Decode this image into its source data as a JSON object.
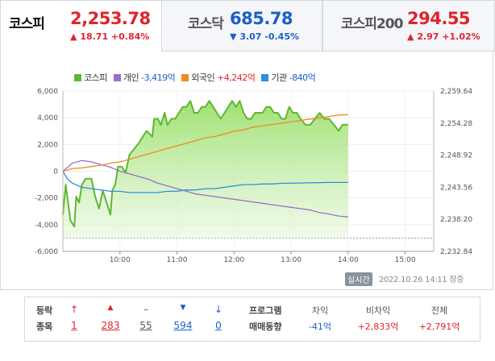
{
  "tabs": [
    {
      "name": "코스피",
      "value": "2,253.78",
      "change_icon": "▲",
      "change_text": "18.71 +0.84%",
      "direction": "up"
    },
    {
      "name": "코스닥",
      "value": "685.78",
      "change_icon": "▼",
      "change_text": "3.07 -0.45%",
      "direction": "down"
    },
    {
      "name": "코스피200",
      "value": "294.55",
      "change_icon": "▲",
      "change_text": "2.97 +1.02%",
      "direction": "up"
    }
  ],
  "legend": [
    {
      "label": "코스피",
      "color": "#5cb82e"
    },
    {
      "label": "개인",
      "value": "-3,419억",
      "color": "#9a70c4"
    },
    {
      "label": "외국인",
      "value": "+4,242억",
      "color": "#f08a22"
    },
    {
      "label": "기관",
      "value": "-840억",
      "color": "#2f8fd8"
    }
  ],
  "chart_data": {
    "type": "line",
    "x_ticks": [
      "10:00",
      "11:00",
      "12:00",
      "13:00",
      "14:00",
      "15:00"
    ],
    "y_left_ticks": [
      "6,000",
      "4,000",
      "2,000",
      "0",
      "-2,000",
      "-4,000",
      "-6,000"
    ],
    "y_right_ticks": [
      "2,259.64",
      "2,254.28",
      "2,248.92",
      "2,243.56",
      "2,238.20",
      "2,232.84"
    ],
    "y_left_range": [
      -6000,
      6000
    ],
    "y_right_range": [
      2232.84,
      2259.64
    ],
    "x_range_minutes": [
      0,
      390
    ],
    "series": [
      {
        "name": "코스피",
        "axis": "right",
        "color": "#5cb82e",
        "fill": true,
        "t": [
          0,
          3,
          8,
          12,
          14,
          17,
          20,
          24,
          30,
          34,
          38,
          42,
          46,
          50,
          52,
          55,
          58,
          62,
          66,
          70,
          75,
          80,
          88,
          94,
          96,
          100,
          103,
          107,
          110,
          114,
          118,
          122,
          126,
          130,
          134,
          138,
          142,
          146,
          150,
          154,
          158,
          162,
          166,
          170,
          174,
          178,
          182,
          186,
          190,
          194,
          198,
          202,
          206,
          210,
          214,
          218,
          222,
          226,
          230,
          234,
          238,
          242,
          246,
          250,
          255,
          260,
          265,
          270,
          275,
          280,
          285,
          290,
          294,
          298,
          300
        ],
        "v": [
          2239,
          2244,
          2238,
          2237,
          2242,
          2241,
          2244,
          2245,
          2245,
          2242,
          2240,
          2243,
          2241,
          2239,
          2243,
          2244,
          2247,
          2247,
          2246,
          2249,
          2250,
          2251,
          2253,
          2252,
          2255,
          2255,
          2254,
          2256,
          2254,
          2255,
          2255,
          2256,
          2257,
          2257,
          2258,
          2256,
          2256,
          2257,
          2257,
          2258,
          2257,
          2256,
          2255,
          2256,
          2257,
          2258,
          2257,
          2258,
          2256,
          2255,
          2255,
          2256,
          2256,
          2256,
          2257,
          2257,
          2256,
          2256,
          2255,
          2255,
          2257,
          2256,
          2256,
          2255,
          2254,
          2254,
          2255,
          2256,
          2255,
          2255,
          2254,
          2253,
          2254,
          2254,
          2254
        ]
      },
      {
        "name": "개인",
        "axis": "left",
        "color": "#9a70c4",
        "t": [
          0,
          10,
          20,
          30,
          40,
          50,
          60,
          70,
          80,
          90,
          100,
          110,
          120,
          130,
          140,
          150,
          160,
          170,
          180,
          190,
          200,
          210,
          220,
          230,
          240,
          250,
          260,
          270,
          280,
          290,
          300
        ],
        "v": [
          0,
          600,
          800,
          700,
          500,
          300,
          0,
          -200,
          -400,
          -600,
          -900,
          -1100,
          -1300,
          -1500,
          -1700,
          -1800,
          -1900,
          -2000,
          -2100,
          -2200,
          -2300,
          -2400,
          -2500,
          -2600,
          -2700,
          -2800,
          -2900,
          -3100,
          -3200,
          -3350,
          -3419
        ]
      },
      {
        "name": "외국인",
        "axis": "left",
        "color": "#f08a22",
        "t": [
          0,
          10,
          20,
          30,
          40,
          50,
          60,
          70,
          80,
          90,
          100,
          110,
          120,
          130,
          140,
          150,
          160,
          170,
          180,
          190,
          200,
          210,
          220,
          230,
          240,
          250,
          260,
          270,
          280,
          290,
          300
        ],
        "v": [
          0,
          200,
          250,
          350,
          450,
          600,
          700,
          900,
          1100,
          1300,
          1500,
          1700,
          1900,
          2100,
          2300,
          2500,
          2600,
          2800,
          3000,
          3100,
          3300,
          3400,
          3500,
          3600,
          3700,
          3800,
          3900,
          4000,
          4100,
          4200,
          4242
        ]
      },
      {
        "name": "기관",
        "axis": "left",
        "color": "#2f8fd8",
        "t": [
          0,
          5,
          10,
          20,
          30,
          40,
          50,
          60,
          70,
          80,
          90,
          100,
          110,
          120,
          130,
          140,
          150,
          160,
          170,
          180,
          190,
          200,
          210,
          220,
          230,
          240,
          250,
          260,
          270,
          280,
          290,
          300
        ],
        "v": [
          0,
          -600,
          -900,
          -1200,
          -1300,
          -1400,
          -1500,
          -1500,
          -1600,
          -1600,
          -1600,
          -1600,
          -1500,
          -1500,
          -1400,
          -1400,
          -1300,
          -1300,
          -1200,
          -1100,
          -1000,
          -1000,
          -950,
          -950,
          -900,
          -900,
          -880,
          -860,
          -850,
          -840,
          -840,
          -840
        ]
      }
    ]
  },
  "status": {
    "realtime_label": "실시간",
    "timestamp": "2022.10.26 14:11",
    "session": "장중"
  },
  "breadth": {
    "label_line1": "등락",
    "label_line2": "종목",
    "items": [
      {
        "icon": "↑",
        "value": "1",
        "color": "#e0242b",
        "icon_name": "upper-limit-icon"
      },
      {
        "icon": "▲",
        "value": "283",
        "color": "#e0242b",
        "icon_name": "rise-icon"
      },
      {
        "icon": "–",
        "value": "55",
        "color": "#555555",
        "icon_name": "unchanged-icon"
      },
      {
        "icon": "▼",
        "value": "594",
        "color": "#1b5fc7",
        "icon_name": "fall-icon"
      },
      {
        "icon": "↓",
        "value": "0",
        "color": "#1b5fc7",
        "icon_name": "lower-limit-icon"
      }
    ]
  },
  "program": {
    "label_line1": "프로그램",
    "label_line2": "매매동향",
    "columns": [
      {
        "header": "차익",
        "value": "-41억",
        "direction": "down"
      },
      {
        "header": "비차익",
        "value": "+2,833억",
        "direction": "up"
      },
      {
        "header": "전체",
        "value": "+2,791억",
        "direction": "up"
      }
    ]
  }
}
